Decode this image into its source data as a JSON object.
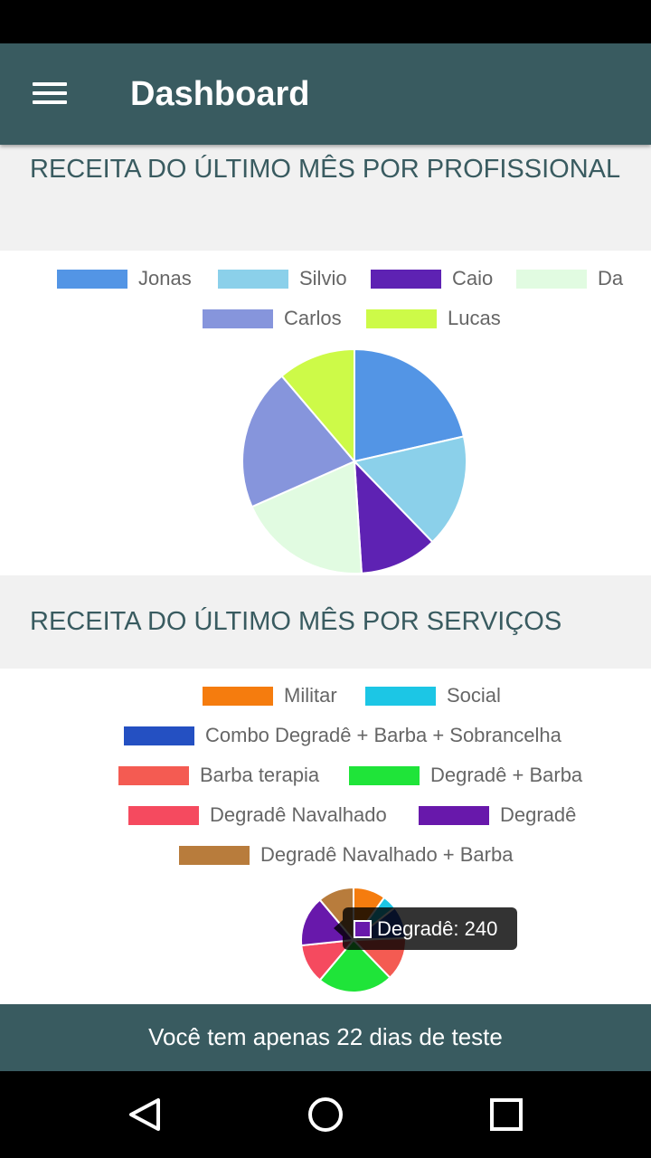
{
  "app": {
    "title": "Dashboard",
    "theme_color": "#395b60"
  },
  "sections": [
    {
      "title": "RECEITA DO ÚLTIMO MÊS POR PROFISSIONAL",
      "chart_data": {
        "type": "pie",
        "title": "",
        "legend": "top",
        "series": [
          {
            "name": "Jonas",
            "value": 21,
            "color": "#5395e5"
          },
          {
            "name": "Silvio",
            "value": 16,
            "color": "#8bd0ea"
          },
          {
            "name": "Caio",
            "value": 11,
            "color": "#5e22b3"
          },
          {
            "name": "Da",
            "value": 19,
            "color": "#e1fbe1"
          },
          {
            "name": "Carlos",
            "value": 20,
            "color": "#8695dc"
          },
          {
            "name": "Lucas",
            "value": 11,
            "color": "#cdfa48"
          }
        ]
      }
    },
    {
      "title": "RECEITA DO ÚLTIMO MÊS POR SERVIÇOS",
      "chart_data": {
        "type": "pie",
        "title": "",
        "legend": "top",
        "series": [
          {
            "name": "Militar",
            "value": 9,
            "color": "#f57c0e"
          },
          {
            "name": "Social",
            "value": 4,
            "color": "#1cc6e5"
          },
          {
            "name": "Combo Degradê + Barba + Sobrancelha",
            "value": 9,
            "color": "#2450c2"
          },
          {
            "name": "Barba terapia",
            "value": 12,
            "color": "#f45b52"
          },
          {
            "name": "Degradê + Barba",
            "value": 21,
            "color": "#1fe439"
          },
          {
            "name": "Degradê Navalhado",
            "value": 11,
            "color": "#f54a5f"
          },
          {
            "name": "Degradê",
            "value": 14,
            "color": "#6818ab"
          },
          {
            "name": "Degradê Navalhado + Barba",
            "value": 10,
            "color": "#b87c3c"
          }
        ],
        "tooltip": {
          "series": "Degradê",
          "text": "Degradê: 240"
        }
      }
    }
  ],
  "trial_banner": "Você tem apenas 22 dias de teste",
  "icons": {
    "menu": "hamburger-menu-icon",
    "back": "back-triangle-icon",
    "home": "home-circle-icon",
    "recents": "recents-square-icon"
  }
}
